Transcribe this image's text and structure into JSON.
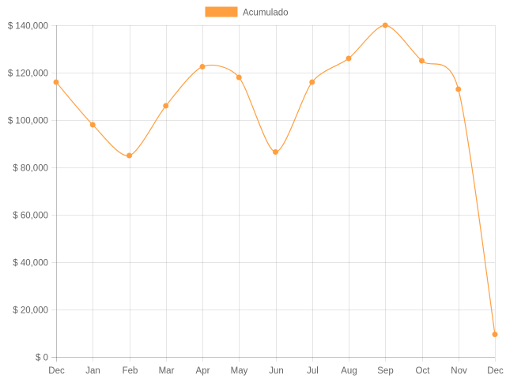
{
  "chart_data": {
    "type": "line",
    "title": "",
    "xlabel": "",
    "ylabel": "",
    "categories": [
      "Dec",
      "Jan",
      "Feb",
      "Mar",
      "Apr",
      "May",
      "Jun",
      "Jul",
      "Aug",
      "Sep",
      "Oct",
      "Nov",
      "Dec"
    ],
    "series": [
      {
        "name": "Acumulado",
        "color": "#ff9f40",
        "values": [
          116000,
          98000,
          85000,
          106000,
          122500,
          118000,
          86500,
          116000,
          126000,
          140000,
          125000,
          113000,
          9500
        ]
      }
    ],
    "ylim": [
      0,
      140000
    ],
    "yticks": [
      0,
      20000,
      40000,
      60000,
      80000,
      100000,
      120000,
      140000
    ],
    "ytick_labels": [
      "$ 0",
      "$ 20,000",
      "$ 40,000",
      "$ 60,000",
      "$ 80,000",
      "$ 100,000",
      "$ 120,000",
      "$ 140,000"
    ],
    "grid": true,
    "legend": "top-center",
    "smooth": true
  }
}
